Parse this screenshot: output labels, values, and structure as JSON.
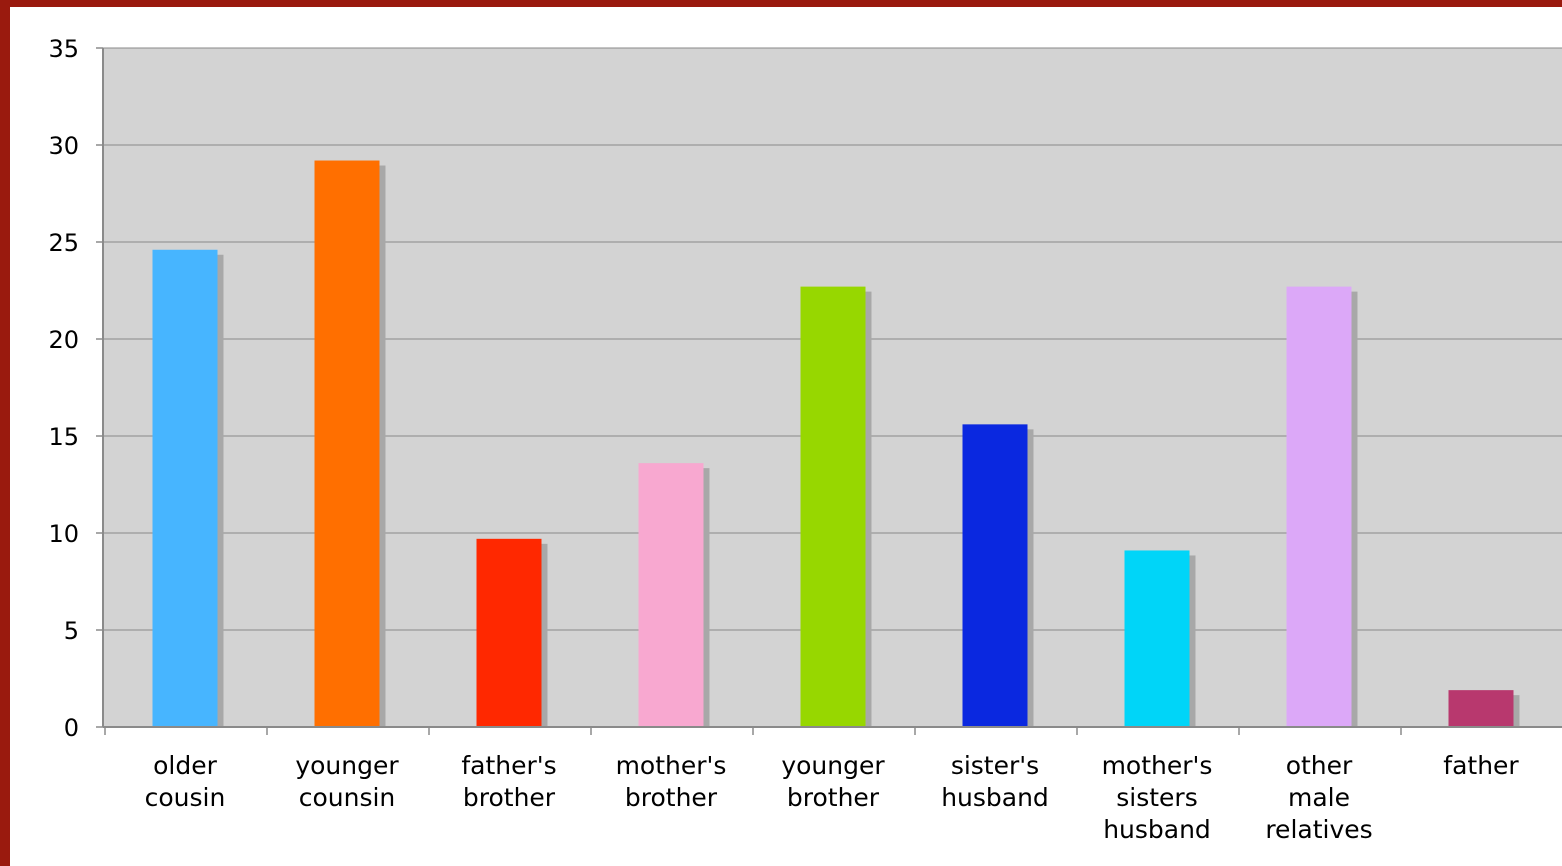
{
  "colors": {
    "frame": "#9a1a0e",
    "plot_background": "#d3d3d3",
    "gridline": "#8a8a8a",
    "axis": "#8a8a8a",
    "shadow": "#a8a8a8"
  },
  "chart_data": {
    "type": "bar",
    "title": "",
    "xlabel": "",
    "ylabel": "",
    "ylim": [
      0,
      35
    ],
    "yticks": [
      0,
      5,
      10,
      15,
      20,
      25,
      30,
      35
    ],
    "grid": true,
    "legend": "none",
    "categories": [
      [
        "older",
        "cousin"
      ],
      [
        "younger",
        "counsin"
      ],
      [
        "father's",
        "brother"
      ],
      [
        "mother's",
        "brother"
      ],
      [
        "younger",
        "brother"
      ],
      [
        "sister's",
        "husband"
      ],
      [
        "mother's",
        "sisters",
        "husband"
      ],
      [
        "other",
        "male",
        "relatives"
      ],
      [
        "father"
      ]
    ],
    "values": [
      24.6,
      29.2,
      9.7,
      13.6,
      22.7,
      15.6,
      9.1,
      22.7,
      1.9
    ],
    "bar_colors": [
      "#47b5ff",
      "#ff6f00",
      "#ff2800",
      "#f8a8d0",
      "#97d700",
      "#0a28e0",
      "#00d5f8",
      "#dca8f8",
      "#b8386e"
    ]
  }
}
